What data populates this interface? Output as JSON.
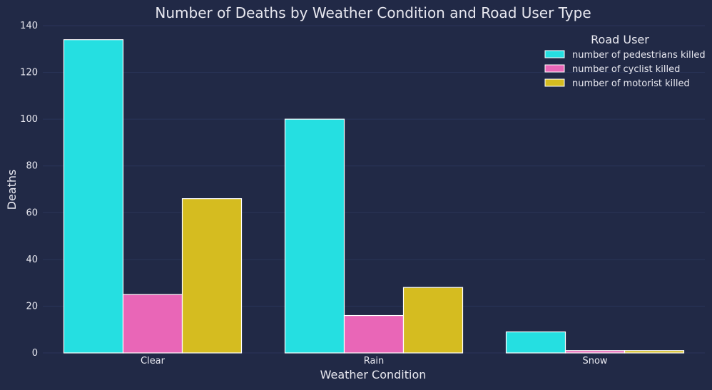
{
  "chart_data": {
    "type": "bar",
    "title": "Number of Deaths by Weather Condition and Road User Type",
    "xlabel": "Weather Condition",
    "ylabel": "Deaths",
    "categories": [
      "Clear",
      "Rain",
      "Snow"
    ],
    "ylim": [
      0,
      140
    ],
    "yticks": [
      0,
      20,
      40,
      60,
      80,
      100,
      120,
      140
    ],
    "grid": "horizontal",
    "legend": {
      "title": "Road User",
      "placement": "top-right"
    },
    "series": [
      {
        "name": "number of pedestrians killed",
        "color": "#25DFE1",
        "values": [
          134,
          100,
          9
        ]
      },
      {
        "name": "number of cyclist killed",
        "color": "#E966B7",
        "values": [
          25,
          16,
          1
        ]
      },
      {
        "name": "number of motorist killed",
        "color": "#D5BC20",
        "values": [
          66,
          28,
          1
        ]
      }
    ]
  },
  "colors": {
    "background": "#212946",
    "grid": "#2A3459",
    "text": "#E8E8F0",
    "bar_edge": "#FFFFFF"
  }
}
